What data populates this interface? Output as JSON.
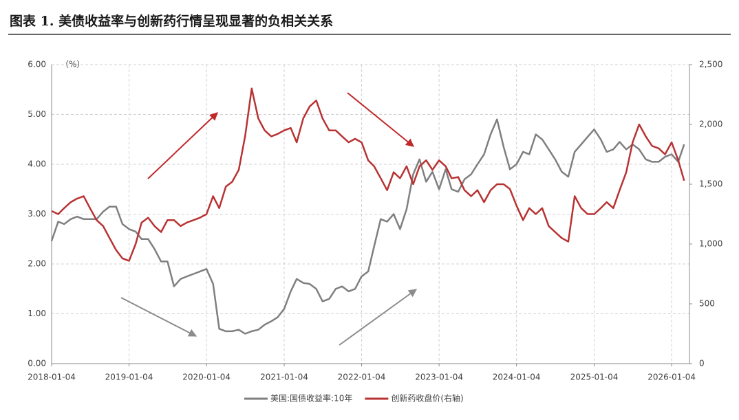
{
  "chart_data": {
    "type": "line",
    "title": "图表 1. 美债收益率与创新药行情呈现显著的负相关关系",
    "ylabel": "（%）",
    "x": [
      "2018-01-04",
      "2018-02-04",
      "2018-03-04",
      "2018-04-04",
      "2018-05-04",
      "2018-06-04",
      "2018-07-04",
      "2018-08-04",
      "2018-09-04",
      "2018-10-04",
      "2018-11-04",
      "2018-12-04",
      "2019-01-04",
      "2019-02-04",
      "2019-03-04",
      "2019-04-04",
      "2019-05-04",
      "2019-06-04",
      "2019-07-04",
      "2019-08-04",
      "2019-09-04",
      "2019-10-04",
      "2019-11-04",
      "2019-12-04",
      "2020-01-04",
      "2020-02-04",
      "2020-03-04",
      "2020-04-04",
      "2020-05-04",
      "2020-06-04",
      "2020-07-04",
      "2020-08-04",
      "2020-09-04",
      "2020-10-04",
      "2020-11-04",
      "2020-12-04",
      "2021-01-04",
      "2021-02-04",
      "2021-03-04",
      "2021-04-04",
      "2021-05-04",
      "2021-06-04",
      "2021-07-04",
      "2021-08-04",
      "2021-09-04",
      "2021-10-04",
      "2021-11-04",
      "2021-12-04",
      "2022-01-04",
      "2022-02-04",
      "2022-03-04",
      "2022-04-04",
      "2022-05-04",
      "2022-06-04",
      "2022-07-04",
      "2022-08-04",
      "2022-09-04",
      "2022-10-04",
      "2022-11-04",
      "2022-12-04",
      "2023-01-04",
      "2023-02-04",
      "2023-03-04",
      "2023-04-04",
      "2023-05-04",
      "2023-06-04",
      "2023-07-04",
      "2023-08-04",
      "2023-09-04",
      "2023-10-04",
      "2023-11-04",
      "2023-12-04",
      "2024-01-04",
      "2024-02-04",
      "2024-03-04",
      "2024-04-04",
      "2024-05-04",
      "2024-06-04",
      "2024-07-04",
      "2024-08-04",
      "2024-09-04",
      "2024-10-04",
      "2024-11-04",
      "2024-12-04",
      "2025-01-04",
      "2025-02-04",
      "2025-03-04",
      "2025-04-04",
      "2025-05-04",
      "2025-06-04",
      "2025-07-04",
      "2025-08-04",
      "2025-09-04",
      "2025-10-04",
      "2025-11-04",
      "2025-12-04",
      "2026-01-04",
      "2026-02-04",
      "2026-03-04"
    ],
    "series": [
      {
        "name": "美国:国债收益率:10年",
        "color": "#7f7f7f",
        "axis": "y",
        "values": [
          2.46,
          2.85,
          2.8,
          2.9,
          2.95,
          2.9,
          2.9,
          2.9,
          3.05,
          3.15,
          3.15,
          2.8,
          2.7,
          2.65,
          2.5,
          2.5,
          2.3,
          2.05,
          2.05,
          1.55,
          1.7,
          1.75,
          1.8,
          1.85,
          1.9,
          1.6,
          0.7,
          0.65,
          0.65,
          0.68,
          0.6,
          0.65,
          0.68,
          0.78,
          0.85,
          0.93,
          1.1,
          1.45,
          1.7,
          1.62,
          1.6,
          1.5,
          1.25,
          1.3,
          1.5,
          1.55,
          1.45,
          1.5,
          1.75,
          1.85,
          2.35,
          2.9,
          2.85,
          3.0,
          2.7,
          3.1,
          3.8,
          4.1,
          3.65,
          3.85,
          3.5,
          3.9,
          3.5,
          3.45,
          3.7,
          3.8,
          4.0,
          4.2,
          4.6,
          4.9,
          4.35,
          3.9,
          4.0,
          4.25,
          4.2,
          4.6,
          4.5,
          4.3,
          4.1,
          3.85,
          3.75,
          4.25,
          4.4,
          4.55,
          4.7,
          4.5,
          4.25,
          4.3,
          4.45,
          4.3,
          4.4,
          4.3,
          4.1,
          4.05,
          4.05,
          4.15,
          4.2,
          4.05,
          4.4
        ]
      },
      {
        "name": "创新药收盘价(右轴)",
        "color": "#b83232",
        "axis": "y2",
        "values": [
          1276,
          1250,
          1300,
          1350,
          1380,
          1400,
          1300,
          1200,
          1150,
          1050,
          950,
          880,
          860,
          1000,
          1180,
          1220,
          1150,
          1100,
          1200,
          1200,
          1150,
          1180,
          1200,
          1220,
          1250,
          1400,
          1300,
          1480,
          1520,
          1620,
          1900,
          2300,
          2050,
          1950,
          1900,
          1920,
          1950,
          1970,
          1850,
          2050,
          2150,
          2200,
          2050,
          1950,
          1950,
          1900,
          1850,
          1880,
          1850,
          1700,
          1650,
          1550,
          1450,
          1600,
          1550,
          1650,
          1500,
          1650,
          1700,
          1620,
          1700,
          1650,
          1550,
          1560,
          1450,
          1400,
          1450,
          1350,
          1450,
          1500,
          1500,
          1460,
          1320,
          1200,
          1300,
          1250,
          1300,
          1150,
          1100,
          1050,
          1020,
          1400,
          1300,
          1250,
          1250,
          1300,
          1350,
          1300,
          1450,
          1600,
          1850,
          2000,
          1900,
          1820,
          1800,
          1750,
          1850,
          1700,
          1530
        ]
      }
    ],
    "xlim": [
      "2018-01-04",
      "2026-03-29"
    ],
    "xticks": [
      "2018-01-04",
      "2019-01-04",
      "2020-01-04",
      "2021-01-04",
      "2022-01-04",
      "2023-01-04",
      "2024-01-04",
      "2025-01-04",
      "2026-01-04"
    ],
    "ylim": [
      0,
      6
    ],
    "yticks": [
      {
        "value": 0,
        "label": "0.00"
      },
      {
        "value": 1,
        "label": "1.00"
      },
      {
        "value": 2,
        "label": "2.00"
      },
      {
        "value": 3,
        "label": "3.00"
      },
      {
        "value": 4,
        "label": "4.00"
      },
      {
        "value": 5,
        "label": "5.00"
      },
      {
        "value": 6,
        "label": "6.00"
      }
    ],
    "y2lim": [
      0,
      2500
    ],
    "y2ticks": [
      0,
      500,
      {
        "value": 1000,
        "label": "1,000"
      },
      {
        "value": 1500,
        "label": "1,500"
      },
      {
        "value": 2000,
        "label": "2,000"
      },
      {
        "value": 2500,
        "label": "2,500"
      }
    ],
    "grid": true,
    "legend": "bottom"
  }
}
